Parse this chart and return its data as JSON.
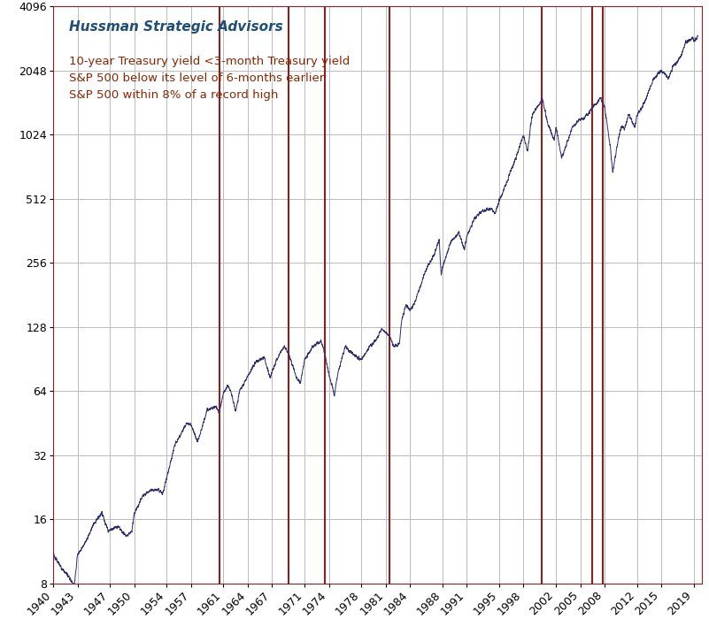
{
  "title": "Hussman Strategic Advisors",
  "legend_lines": [
    "10-year Treasury yield <3-month Treasury yield",
    "S&P 500 below its level of 6-months earlier",
    "S&P 500 within 8% of a record high"
  ],
  "title_color": "#1F4E79",
  "legend_color": "#8B2500",
  "line_color": "#2B2D6E",
  "vline_color": "#8B2020",
  "vline_positions": [
    1960.5,
    1969.0,
    1973.5,
    1981.5,
    2000.2,
    2006.5,
    2007.8
  ],
  "xmin": 1940,
  "xmax": 2020,
  "ymin": 8,
  "ymax": 4096,
  "xtick_values": [
    1940,
    1943,
    1947,
    1950,
    1954,
    1957,
    1961,
    1964,
    1967,
    1971,
    1974,
    1978,
    1981,
    1984,
    1988,
    1991,
    1995,
    1998,
    2002,
    2005,
    2008,
    2012,
    2015,
    2019
  ],
  "ytick_values": [
    8,
    16,
    32,
    64,
    128,
    256,
    512,
    1024,
    2048,
    4096
  ],
  "background_color": "#FFFFFF",
  "grid_color": "#BBBBBB",
  "border_color": "#000000",
  "bottom_border_color": "#8B2020",
  "title_fontsize": 11,
  "legend_fontsize": 9.5,
  "tick_fontsize": 9
}
